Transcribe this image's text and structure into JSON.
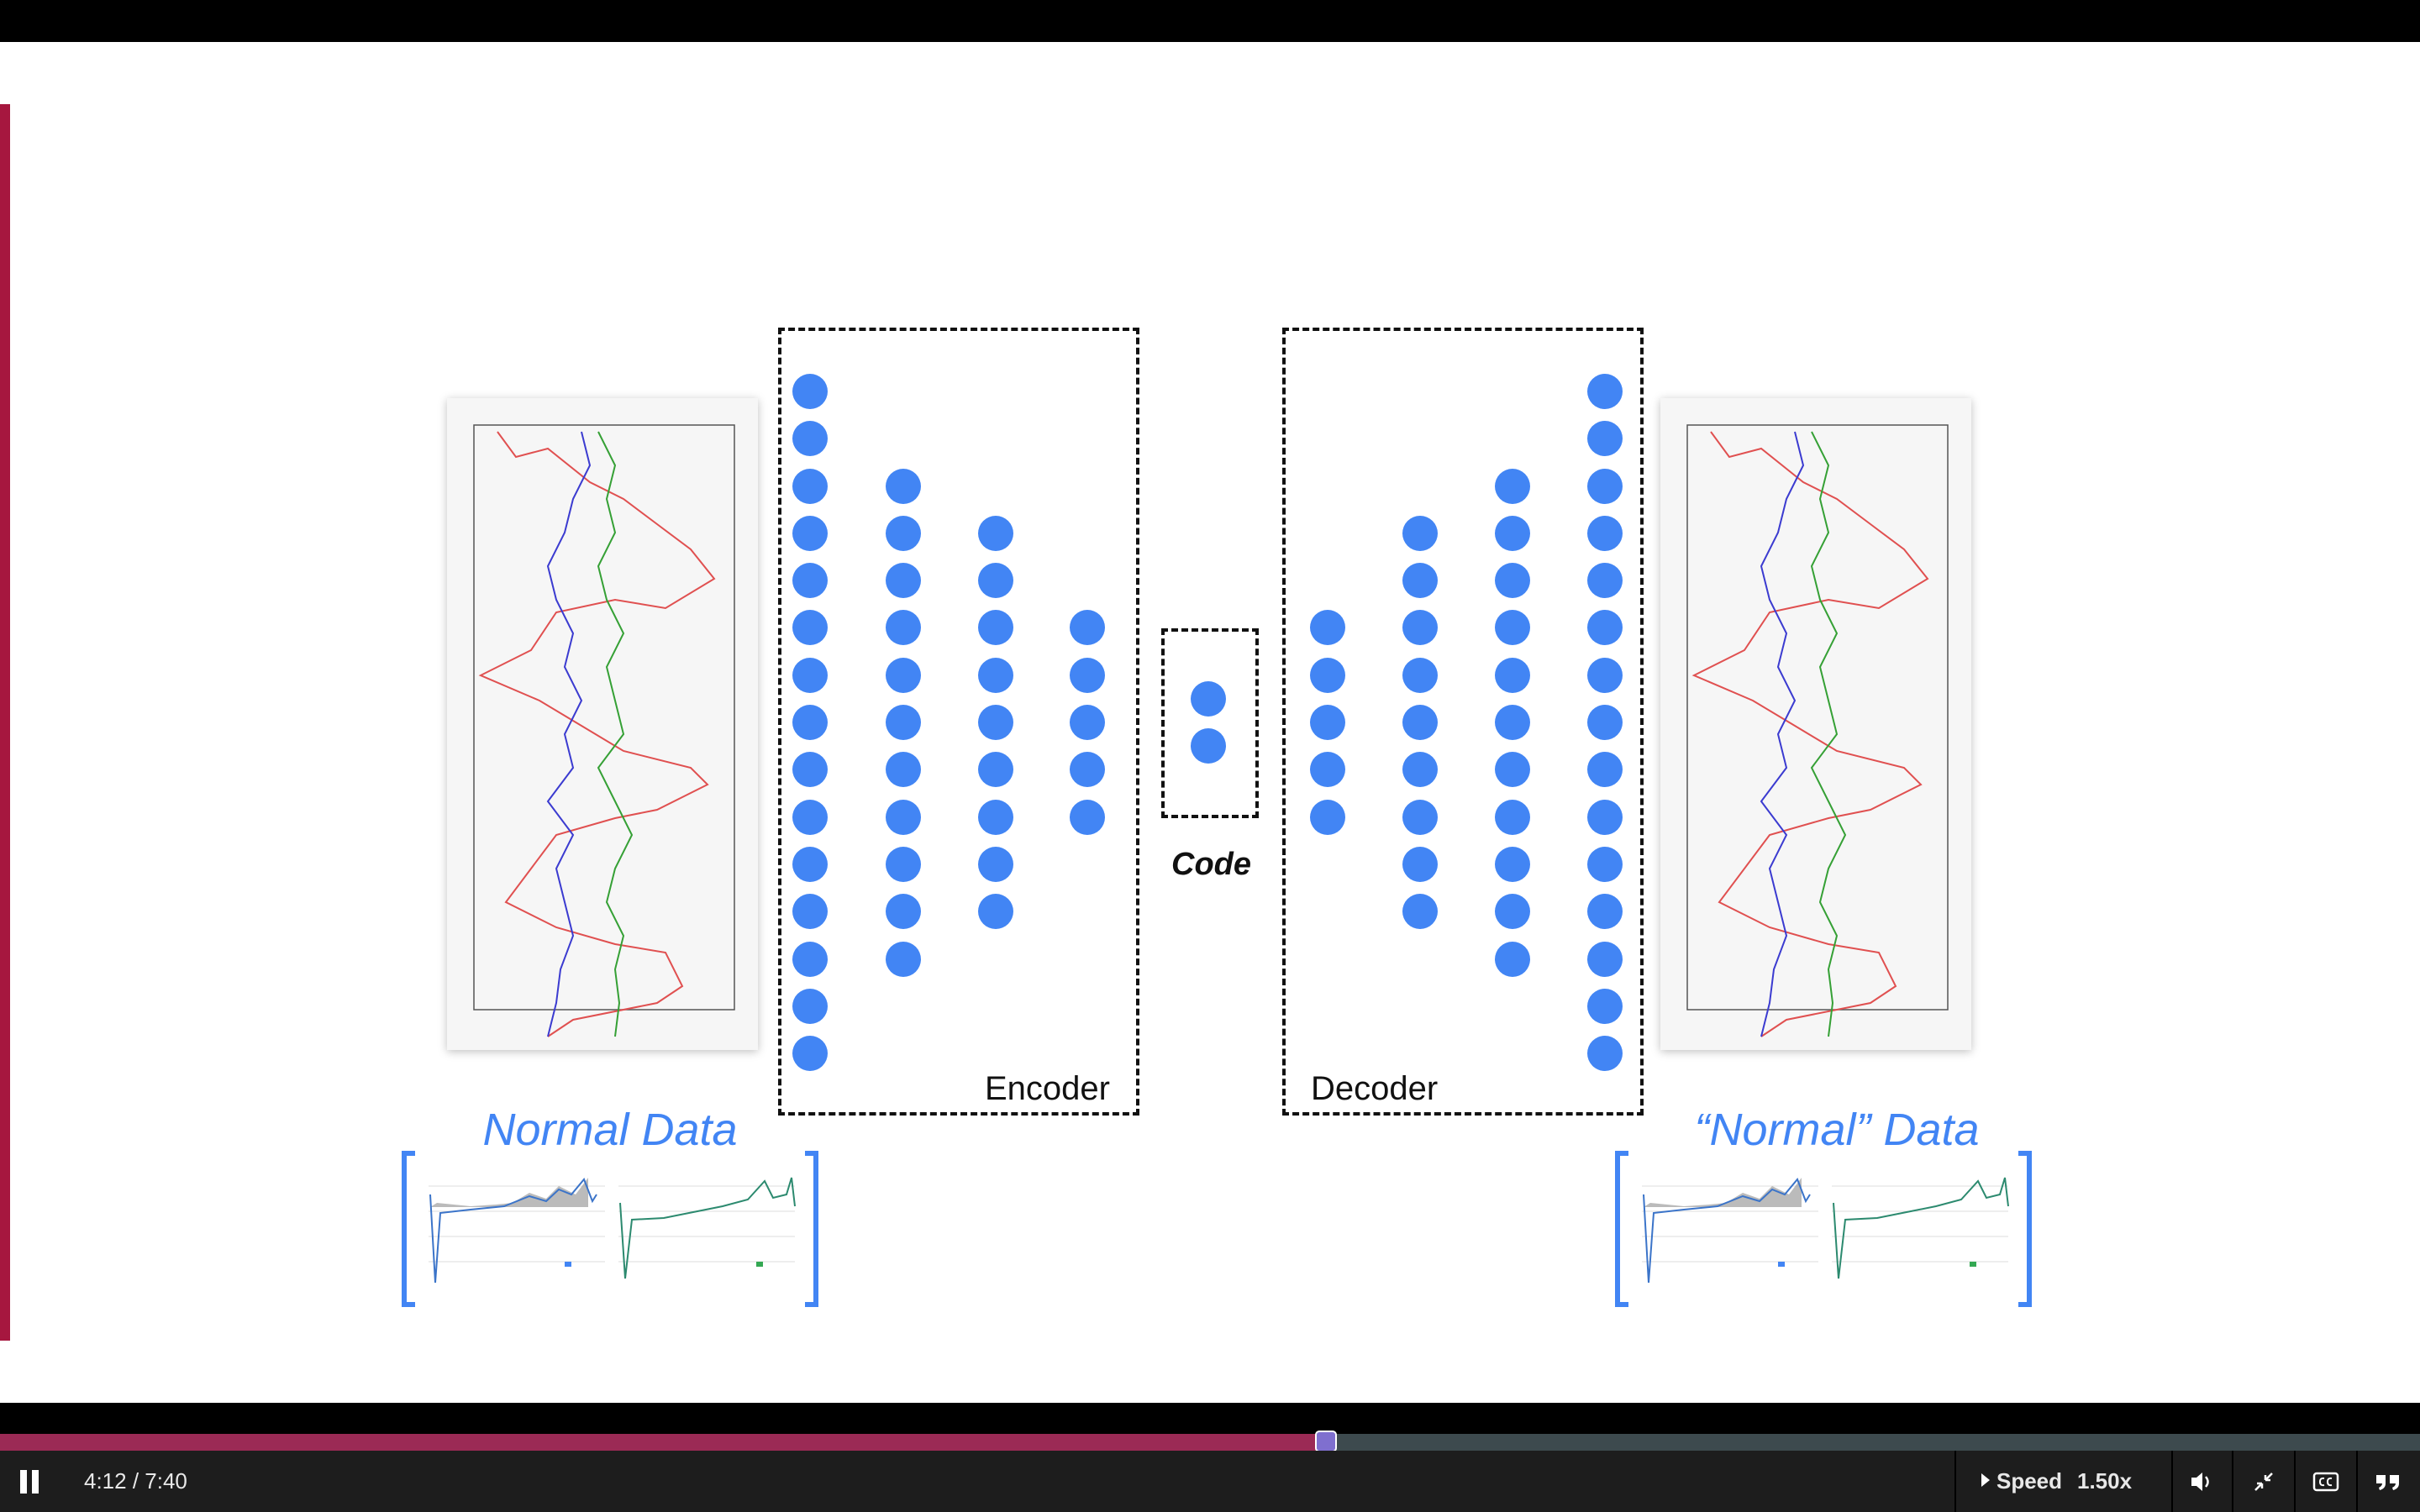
{
  "slide": {
    "encoder_label": "Encoder",
    "decoder_label": "Decoder",
    "code_label": "Code",
    "left_title": "Normal Data",
    "right_title": "“Normal” Data",
    "node_color": "#4285f4",
    "encoder_layers": [
      15,
      11,
      9,
      5
    ],
    "code_nodes": 2,
    "decoder_layers": [
      5,
      9,
      11,
      15
    ]
  },
  "player": {
    "time": "4:12 / 7:40",
    "progress": 0.5478,
    "speed_label": "Speed",
    "speed_value": "1.50x",
    "play_state_icon": "pause-icon",
    "accent_color": "#9b2a55"
  }
}
